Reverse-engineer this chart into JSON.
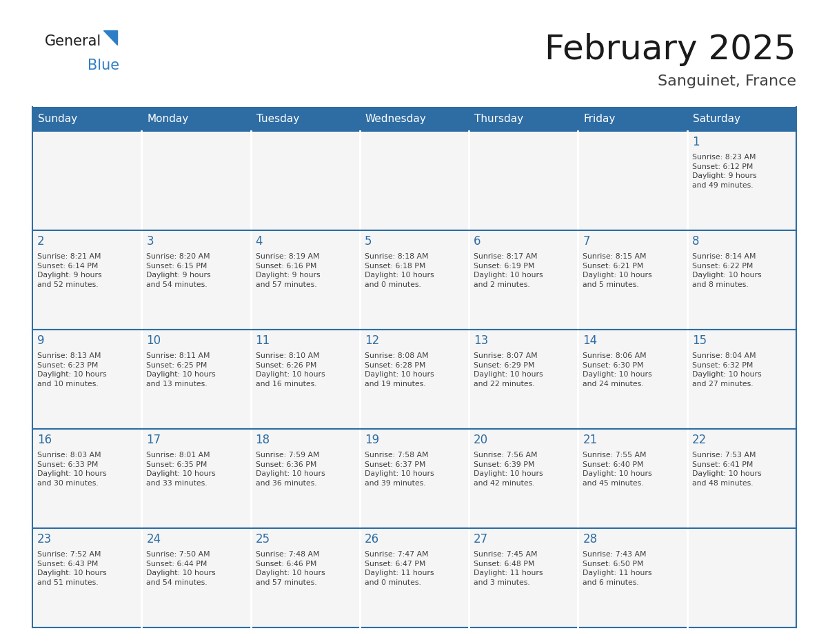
{
  "title": "February 2025",
  "subtitle": "Sanguinet, France",
  "days_of_week": [
    "Sunday",
    "Monday",
    "Tuesday",
    "Wednesday",
    "Thursday",
    "Friday",
    "Saturday"
  ],
  "header_bg": "#2E6DA4",
  "header_text": "#FFFFFF",
  "cell_bg": "#F5F5F5",
  "border_color": "#2E6DA4",
  "day_number_color": "#2E6DA4",
  "info_text_color": "#404040",
  "title_color": "#1a1a1a",
  "subtitle_color": "#404040",
  "logo_general_color": "#1a1a1a",
  "logo_blue_color": "#2E7EC7",
  "weeks": [
    [
      {
        "day": null,
        "info": ""
      },
      {
        "day": null,
        "info": ""
      },
      {
        "day": null,
        "info": ""
      },
      {
        "day": null,
        "info": ""
      },
      {
        "day": null,
        "info": ""
      },
      {
        "day": null,
        "info": ""
      },
      {
        "day": 1,
        "info": "Sunrise: 8:23 AM\nSunset: 6:12 PM\nDaylight: 9 hours\nand 49 minutes."
      }
    ],
    [
      {
        "day": 2,
        "info": "Sunrise: 8:21 AM\nSunset: 6:14 PM\nDaylight: 9 hours\nand 52 minutes."
      },
      {
        "day": 3,
        "info": "Sunrise: 8:20 AM\nSunset: 6:15 PM\nDaylight: 9 hours\nand 54 minutes."
      },
      {
        "day": 4,
        "info": "Sunrise: 8:19 AM\nSunset: 6:16 PM\nDaylight: 9 hours\nand 57 minutes."
      },
      {
        "day": 5,
        "info": "Sunrise: 8:18 AM\nSunset: 6:18 PM\nDaylight: 10 hours\nand 0 minutes."
      },
      {
        "day": 6,
        "info": "Sunrise: 8:17 AM\nSunset: 6:19 PM\nDaylight: 10 hours\nand 2 minutes."
      },
      {
        "day": 7,
        "info": "Sunrise: 8:15 AM\nSunset: 6:21 PM\nDaylight: 10 hours\nand 5 minutes."
      },
      {
        "day": 8,
        "info": "Sunrise: 8:14 AM\nSunset: 6:22 PM\nDaylight: 10 hours\nand 8 minutes."
      }
    ],
    [
      {
        "day": 9,
        "info": "Sunrise: 8:13 AM\nSunset: 6:23 PM\nDaylight: 10 hours\nand 10 minutes."
      },
      {
        "day": 10,
        "info": "Sunrise: 8:11 AM\nSunset: 6:25 PM\nDaylight: 10 hours\nand 13 minutes."
      },
      {
        "day": 11,
        "info": "Sunrise: 8:10 AM\nSunset: 6:26 PM\nDaylight: 10 hours\nand 16 minutes."
      },
      {
        "day": 12,
        "info": "Sunrise: 8:08 AM\nSunset: 6:28 PM\nDaylight: 10 hours\nand 19 minutes."
      },
      {
        "day": 13,
        "info": "Sunrise: 8:07 AM\nSunset: 6:29 PM\nDaylight: 10 hours\nand 22 minutes."
      },
      {
        "day": 14,
        "info": "Sunrise: 8:06 AM\nSunset: 6:30 PM\nDaylight: 10 hours\nand 24 minutes."
      },
      {
        "day": 15,
        "info": "Sunrise: 8:04 AM\nSunset: 6:32 PM\nDaylight: 10 hours\nand 27 minutes."
      }
    ],
    [
      {
        "day": 16,
        "info": "Sunrise: 8:03 AM\nSunset: 6:33 PM\nDaylight: 10 hours\nand 30 minutes."
      },
      {
        "day": 17,
        "info": "Sunrise: 8:01 AM\nSunset: 6:35 PM\nDaylight: 10 hours\nand 33 minutes."
      },
      {
        "day": 18,
        "info": "Sunrise: 7:59 AM\nSunset: 6:36 PM\nDaylight: 10 hours\nand 36 minutes."
      },
      {
        "day": 19,
        "info": "Sunrise: 7:58 AM\nSunset: 6:37 PM\nDaylight: 10 hours\nand 39 minutes."
      },
      {
        "day": 20,
        "info": "Sunrise: 7:56 AM\nSunset: 6:39 PM\nDaylight: 10 hours\nand 42 minutes."
      },
      {
        "day": 21,
        "info": "Sunrise: 7:55 AM\nSunset: 6:40 PM\nDaylight: 10 hours\nand 45 minutes."
      },
      {
        "day": 22,
        "info": "Sunrise: 7:53 AM\nSunset: 6:41 PM\nDaylight: 10 hours\nand 48 minutes."
      }
    ],
    [
      {
        "day": 23,
        "info": "Sunrise: 7:52 AM\nSunset: 6:43 PM\nDaylight: 10 hours\nand 51 minutes."
      },
      {
        "day": 24,
        "info": "Sunrise: 7:50 AM\nSunset: 6:44 PM\nDaylight: 10 hours\nand 54 minutes."
      },
      {
        "day": 25,
        "info": "Sunrise: 7:48 AM\nSunset: 6:46 PM\nDaylight: 10 hours\nand 57 minutes."
      },
      {
        "day": 26,
        "info": "Sunrise: 7:47 AM\nSunset: 6:47 PM\nDaylight: 11 hours\nand 0 minutes."
      },
      {
        "day": 27,
        "info": "Sunrise: 7:45 AM\nSunset: 6:48 PM\nDaylight: 11 hours\nand 3 minutes."
      },
      {
        "day": 28,
        "info": "Sunrise: 7:43 AM\nSunset: 6:50 PM\nDaylight: 11 hours\nand 6 minutes."
      },
      {
        "day": null,
        "info": ""
      }
    ]
  ]
}
